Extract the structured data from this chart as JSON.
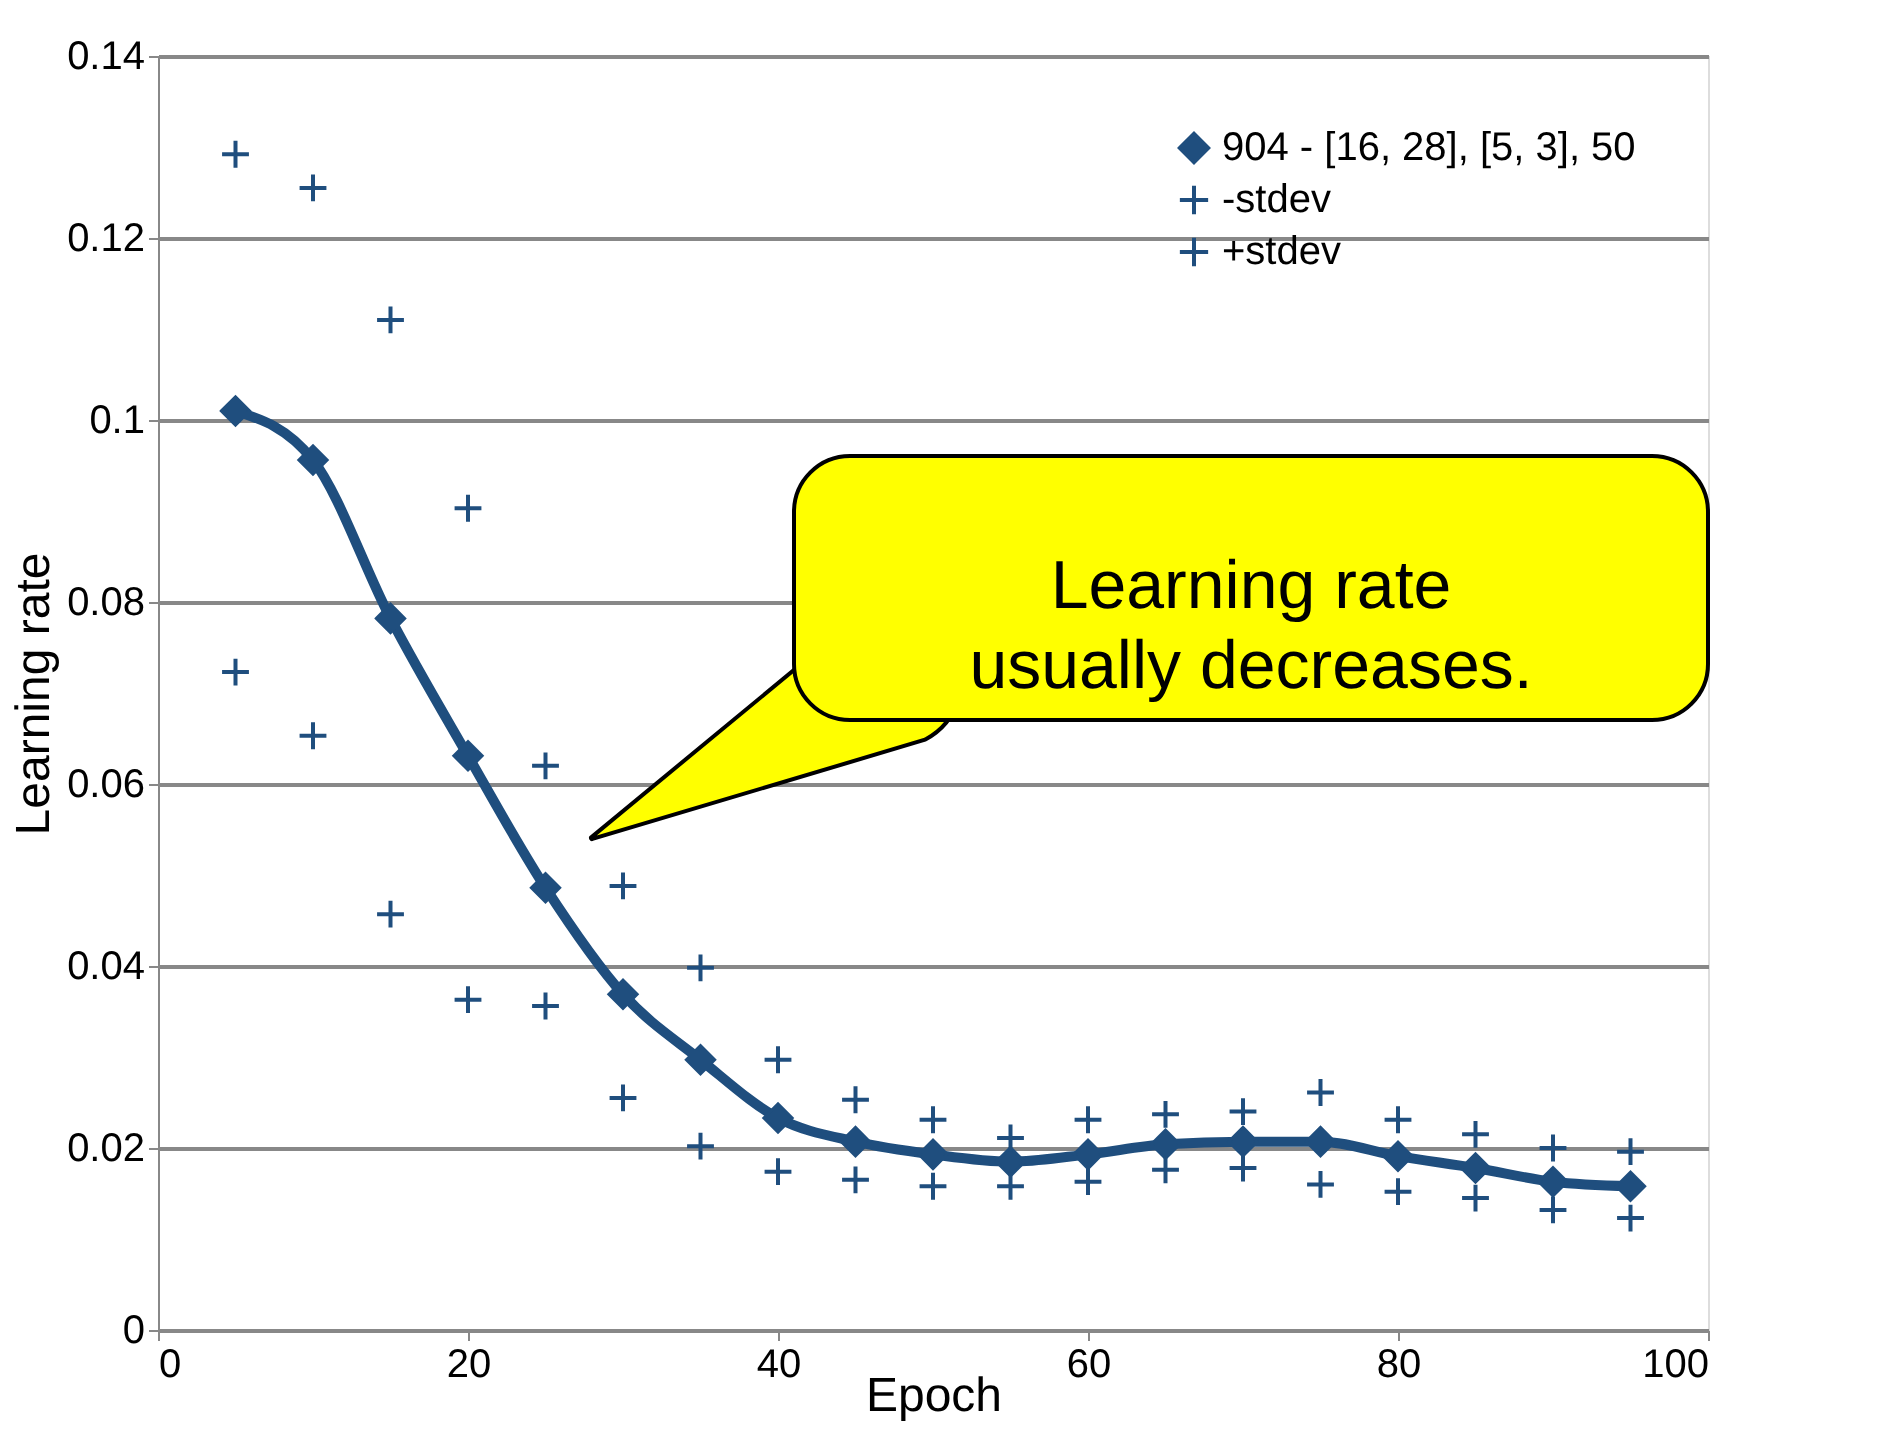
{
  "chart_data": {
    "type": "line",
    "xlabel": "Epoch",
    "ylabel": "Learning rate",
    "x": [
      5,
      10,
      15,
      20,
      25,
      30,
      35,
      40,
      45,
      50,
      55,
      60,
      65,
      70,
      75,
      80,
      85,
      90,
      95
    ],
    "series": [
      {
        "name": "904 - [16, 28], [5, 3], 50",
        "marker": "diamond",
        "color": "#1f4e7e",
        "values": [
          0.101,
          0.0956,
          0.0782,
          0.0631,
          0.0486,
          0.0369,
          0.0297,
          0.0233,
          0.0207,
          0.0193,
          0.0185,
          0.0193,
          0.0204,
          0.0207,
          0.0207,
          0.0191,
          0.0178,
          0.0163,
          0.0158
        ]
      },
      {
        "name": "-stdev",
        "type": "scatter",
        "marker": "cross",
        "color": "#1f4e7e",
        "values": [
          0.0723,
          0.0653,
          0.0457,
          0.0363,
          0.0356,
          0.0255,
          0.0202,
          0.0174,
          0.0165,
          0.0158,
          0.0158,
          0.0163,
          0.0176,
          0.0178,
          0.016,
          0.0152,
          0.0145,
          0.0132,
          0.0123
        ]
      },
      {
        "name": "+stdev",
        "type": "scatter",
        "marker": "cross",
        "color": "#1f4e7e",
        "values": [
          0.1292,
          0.1255,
          0.111,
          0.0903,
          0.062,
          0.0488,
          0.0398,
          0.0297,
          0.0253,
          0.0231,
          0.0211,
          0.0231,
          0.0237,
          0.024,
          0.0261,
          0.0231,
          0.0215,
          0.02,
          0.0196
        ]
      }
    ],
    "xlim": [
      0,
      100
    ],
    "xticks": [
      0,
      20,
      40,
      60,
      80,
      100
    ],
    "ylim": [
      0,
      0.14
    ],
    "yticks": [
      0,
      0.02,
      0.04,
      0.06,
      0.08,
      0.1,
      0.12,
      0.14
    ],
    "grid": "y",
    "legend": "top right",
    "annotations": [
      "Learning rate\nusually decreases."
    ]
  }
}
